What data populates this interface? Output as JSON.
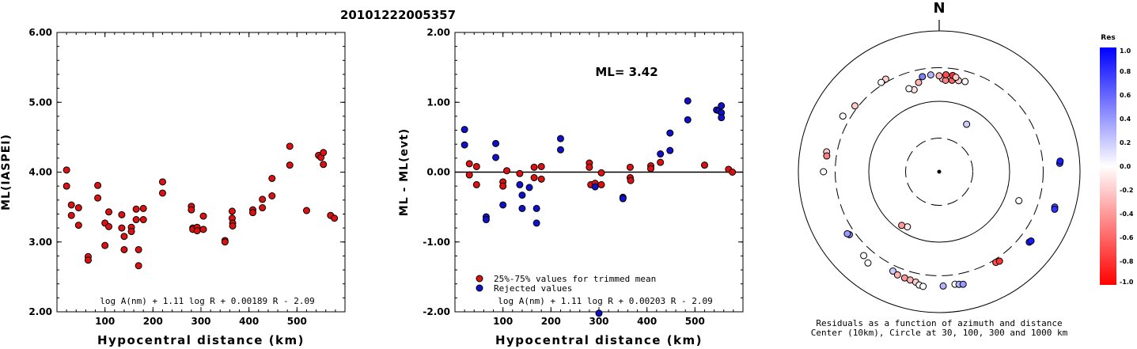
{
  "title": "20101222005357",
  "chart_data": [
    {
      "type": "scatter",
      "ylabel": "ML(IASPEI)",
      "xlabel": "Hypocentral distance (km)",
      "xlim": [
        0,
        600
      ],
      "ylim": [
        2.0,
        6.0
      ],
      "xticks": [
        "100",
        "200",
        "300",
        "400",
        "500"
      ],
      "xtick_values": [
        100,
        200,
        300,
        400,
        500
      ],
      "yticks": [
        "2.00",
        "3.00",
        "4.00",
        "5.00",
        "6.00"
      ],
      "ytick_values": [
        2,
        3,
        4,
        5,
        6
      ],
      "formula": "log A(nm) + 1.11 log R + 0.00189 R - 2.09",
      "series": [
        {
          "color": "#dd1111",
          "points": [
            [
              20,
              4.03
            ],
            [
              20,
              3.8
            ],
            [
              30,
              3.53
            ],
            [
              30,
              3.38
            ],
            [
              45,
              3.49
            ],
            [
              45,
              3.24
            ],
            [
              65,
              2.79
            ],
            [
              65,
              2.74
            ],
            [
              85,
              3.81
            ],
            [
              85,
              3.63
            ],
            [
              100,
              3.27
            ],
            [
              100,
              2.95
            ],
            [
              108,
              3.43
            ],
            [
              108,
              3.22
            ],
            [
              135,
              3.39
            ],
            [
              135,
              3.2
            ],
            [
              140,
              3.08
            ],
            [
              140,
              2.89
            ],
            [
              155,
              3.21
            ],
            [
              155,
              3.15
            ],
            [
              165,
              3.47
            ],
            [
              165,
              3.32
            ],
            [
              170,
              2.89
            ],
            [
              170,
              2.66
            ],
            [
              180,
              3.48
            ],
            [
              180,
              3.32
            ],
            [
              220,
              3.86
            ],
            [
              220,
              3.7
            ],
            [
              280,
              3.51
            ],
            [
              280,
              3.46
            ],
            [
              283,
              3.2
            ],
            [
              283,
              3.18
            ],
            [
              292,
              3.21
            ],
            [
              292,
              3.16
            ],
            [
              305,
              3.37
            ],
            [
              305,
              3.18
            ],
            [
              350,
              3.02
            ],
            [
              350,
              3.0
            ],
            [
              365,
              3.44
            ],
            [
              365,
              3.34
            ],
            [
              366,
              3.27
            ],
            [
              366,
              3.23
            ],
            [
              408,
              3.46
            ],
            [
              408,
              3.42
            ],
            [
              428,
              3.61
            ],
            [
              428,
              3.49
            ],
            [
              448,
              3.91
            ],
            [
              448,
              3.66
            ],
            [
              485,
              4.37
            ],
            [
              485,
              4.1
            ],
            [
              520,
              3.45
            ],
            [
              545,
              4.24
            ],
            [
              550,
              4.21
            ],
            [
              555,
              4.28
            ],
            [
              555,
              4.11
            ],
            [
              570,
              3.38
            ],
            [
              578,
              3.34
            ]
          ]
        }
      ]
    },
    {
      "type": "scatter",
      "ylabel": "ML - ML(evt)",
      "xlabel": "Hypocentral distance (km)",
      "xlim": [
        0,
        600
      ],
      "ylim": [
        -2.0,
        2.0
      ],
      "xticks": [
        "100",
        "200",
        "300",
        "400",
        "500"
      ],
      "xtick_values": [
        100,
        200,
        300,
        400,
        500
      ],
      "yticks": [
        "-2.00",
        "-1.00",
        "0.00",
        "1.00",
        "2.00"
      ],
      "ytick_values": [
        -2,
        -1,
        0,
        1,
        2
      ],
      "annotation": "ML= 3.42",
      "reference_line": 0,
      "legend": [
        {
          "label": "25%-75% values for trimmed mean",
          "color": "#dd1111"
        },
        {
          "label": "Rejected values",
          "color": "#1111cc"
        }
      ],
      "formula": "log A(nm) + 1.11 log R + 0.00203 R - 2.09",
      "series": [
        {
          "name": "25%-75% values for trimmed mean",
          "color": "#dd1111",
          "points": [
            [
              30,
              0.12
            ],
            [
              30,
              -0.04
            ],
            [
              45,
              0.08
            ],
            [
              45,
              -0.18
            ],
            [
              100,
              -0.14
            ],
            [
              100,
              -0.2
            ],
            [
              108,
              0.02
            ],
            [
              135,
              -0.02
            ],
            [
              165,
              0.07
            ],
            [
              165,
              -0.08
            ],
            [
              180,
              0.08
            ],
            [
              180,
              -0.1
            ],
            [
              280,
              0.13
            ],
            [
              280,
              0.07
            ],
            [
              283,
              -0.18
            ],
            [
              292,
              -0.16
            ],
            [
              305,
              -0.01
            ],
            [
              305,
              -0.18
            ],
            [
              365,
              0.07
            ],
            [
              365,
              -0.08
            ],
            [
              366,
              -0.12
            ],
            [
              408,
              0.09
            ],
            [
              408,
              0.05
            ],
            [
              428,
              0.14
            ],
            [
              520,
              0.1
            ],
            [
              570,
              0.04
            ],
            [
              578,
              0.0
            ]
          ]
        },
        {
          "name": "Rejected values",
          "color": "#1111cc",
          "points": [
            [
              20,
              0.61
            ],
            [
              20,
              0.39
            ],
            [
              65,
              -0.64
            ],
            [
              65,
              -0.68
            ],
            [
              85,
              0.41
            ],
            [
              85,
              0.21
            ],
            [
              100,
              -0.47
            ],
            [
              135,
              -0.18
            ],
            [
              140,
              -0.33
            ],
            [
              140,
              -0.52
            ],
            [
              155,
              -0.22
            ],
            [
              170,
              -0.52
            ],
            [
              170,
              -0.73
            ],
            [
              220,
              0.48
            ],
            [
              220,
              0.32
            ],
            [
              292,
              -0.21
            ],
            [
              350,
              -0.36
            ],
            [
              350,
              -0.38
            ],
            [
              428,
              0.26
            ],
            [
              448,
              0.56
            ],
            [
              448,
              0.31
            ],
            [
              485,
              1.02
            ],
            [
              485,
              0.75
            ],
            [
              545,
              0.89
            ],
            [
              550,
              0.88
            ],
            [
              555,
              0.95
            ],
            [
              555,
              0.85
            ],
            [
              555,
              0.78
            ],
            [
              300,
              -2.02
            ]
          ]
        }
      ]
    },
    {
      "type": "polar-scatter",
      "north_label": "N",
      "caption_line1": "Residuals as a function of azimuth and distance",
      "caption_line2": "Center (10km), Circle at 30, 100, 300 and 1000 km",
      "colorbar_title": "Res",
      "colorbar_ticks": [
        "1.0",
        "0.8",
        "0.6",
        "0.4",
        "0.2",
        "0.0",
        "-0.2",
        "-0.4",
        "-0.6",
        "-0.8",
        "-1.0"
      ],
      "colorbar_tick_values": [
        1.0,
        0.8,
        0.6,
        0.4,
        0.2,
        0.0,
        -0.2,
        -0.4,
        -0.6,
        -0.8,
        -1.0
      ],
      "points": [
        {
          "az": 30,
          "dist": 60,
          "res": 0.2
        },
        {
          "az": 210,
          "dist": 80,
          "res": -0.1
        },
        {
          "az": 215,
          "dist": 85,
          "res": -0.4
        },
        {
          "az": 110,
          "dist": 160,
          "res": 0.0
        },
        {
          "az": 343,
          "dist": 165,
          "res": -0.1
        },
        {
          "az": 340,
          "dist": 180,
          "res": 0.0
        },
        {
          "az": 347,
          "dist": 200,
          "res": -0.3
        },
        {
          "az": 2,
          "dist": 210,
          "res": -0.2
        },
        {
          "az": 4,
          "dist": 200,
          "res": -0.5
        },
        {
          "az": 8,
          "dist": 205,
          "res": -0.6
        },
        {
          "az": 12,
          "dist": 210,
          "res": -0.2
        },
        {
          "az": 16,
          "dist": 215,
          "res": 0.0
        },
        {
          "az": 350,
          "dist": 235,
          "res": 0.5
        },
        {
          "az": 355,
          "dist": 240,
          "res": 0.3
        },
        {
          "az": 4,
          "dist": 240,
          "res": -0.7
        },
        {
          "az": 8,
          "dist": 240,
          "res": -0.8
        },
        {
          "az": 0,
          "dist": 230,
          "res": -0.3
        },
        {
          "az": 10,
          "dist": 230,
          "res": -0.2
        },
        {
          "az": 330,
          "dist": 330,
          "res": -0.2
        },
        {
          "az": 327,
          "dist": 325,
          "res": 0.0
        },
        {
          "az": 280,
          "dist": 420,
          "res": -0.2
        },
        {
          "az": 278,
          "dist": 410,
          "res": -0.5
        },
        {
          "az": 270,
          "dist": 440,
          "res": 0.0
        },
        {
          "az": 86,
          "dist": 520,
          "res": 0.8
        },
        {
          "az": 85,
          "dist": 530,
          "res": 0.9
        },
        {
          "az": 107,
          "dist": 520,
          "res": 0.7
        },
        {
          "az": 108,
          "dist": 530,
          "res": 0.8
        },
        {
          "az": 235,
          "dist": 360,
          "res": 0.5
        },
        {
          "az": 236,
          "dist": 375,
          "res": 0.4
        },
        {
          "az": 222,
          "dist": 400,
          "res": 0.0
        },
        {
          "az": 218,
          "dist": 440,
          "res": 0.0
        },
        {
          "az": 205,
          "dist": 360,
          "res": 0.2
        },
        {
          "az": 202,
          "dist": 380,
          "res": -0.3
        },
        {
          "az": 198,
          "dist": 385,
          "res": -0.4
        },
        {
          "az": 195,
          "dist": 390,
          "res": -0.3
        },
        {
          "az": 192,
          "dist": 400,
          "res": -0.2
        },
        {
          "az": 190,
          "dist": 430,
          "res": 0.0
        },
        {
          "az": 188,
          "dist": 440,
          "res": 0.0
        },
        {
          "az": 178,
          "dist": 420,
          "res": 0.3
        },
        {
          "az": 172,
          "dist": 410,
          "res": 0.0
        },
        {
          "az": 170,
          "dist": 420,
          "res": 0.3
        },
        {
          "az": 168,
          "dist": 430,
          "res": 0.4
        },
        {
          "az": 148,
          "dist": 330,
          "res": -0.7
        },
        {
          "az": 146,
          "dist": 340,
          "res": -0.8
        },
        {
          "az": 128,
          "dist": 420,
          "res": 0.9
        },
        {
          "az": 127,
          "dist": 430,
          "res": 0.9
        },
        {
          "az": 308,
          "dist": 330,
          "res": -0.2
        },
        {
          "az": 300,
          "dist": 380,
          "res": 0.0
        }
      ]
    }
  ]
}
